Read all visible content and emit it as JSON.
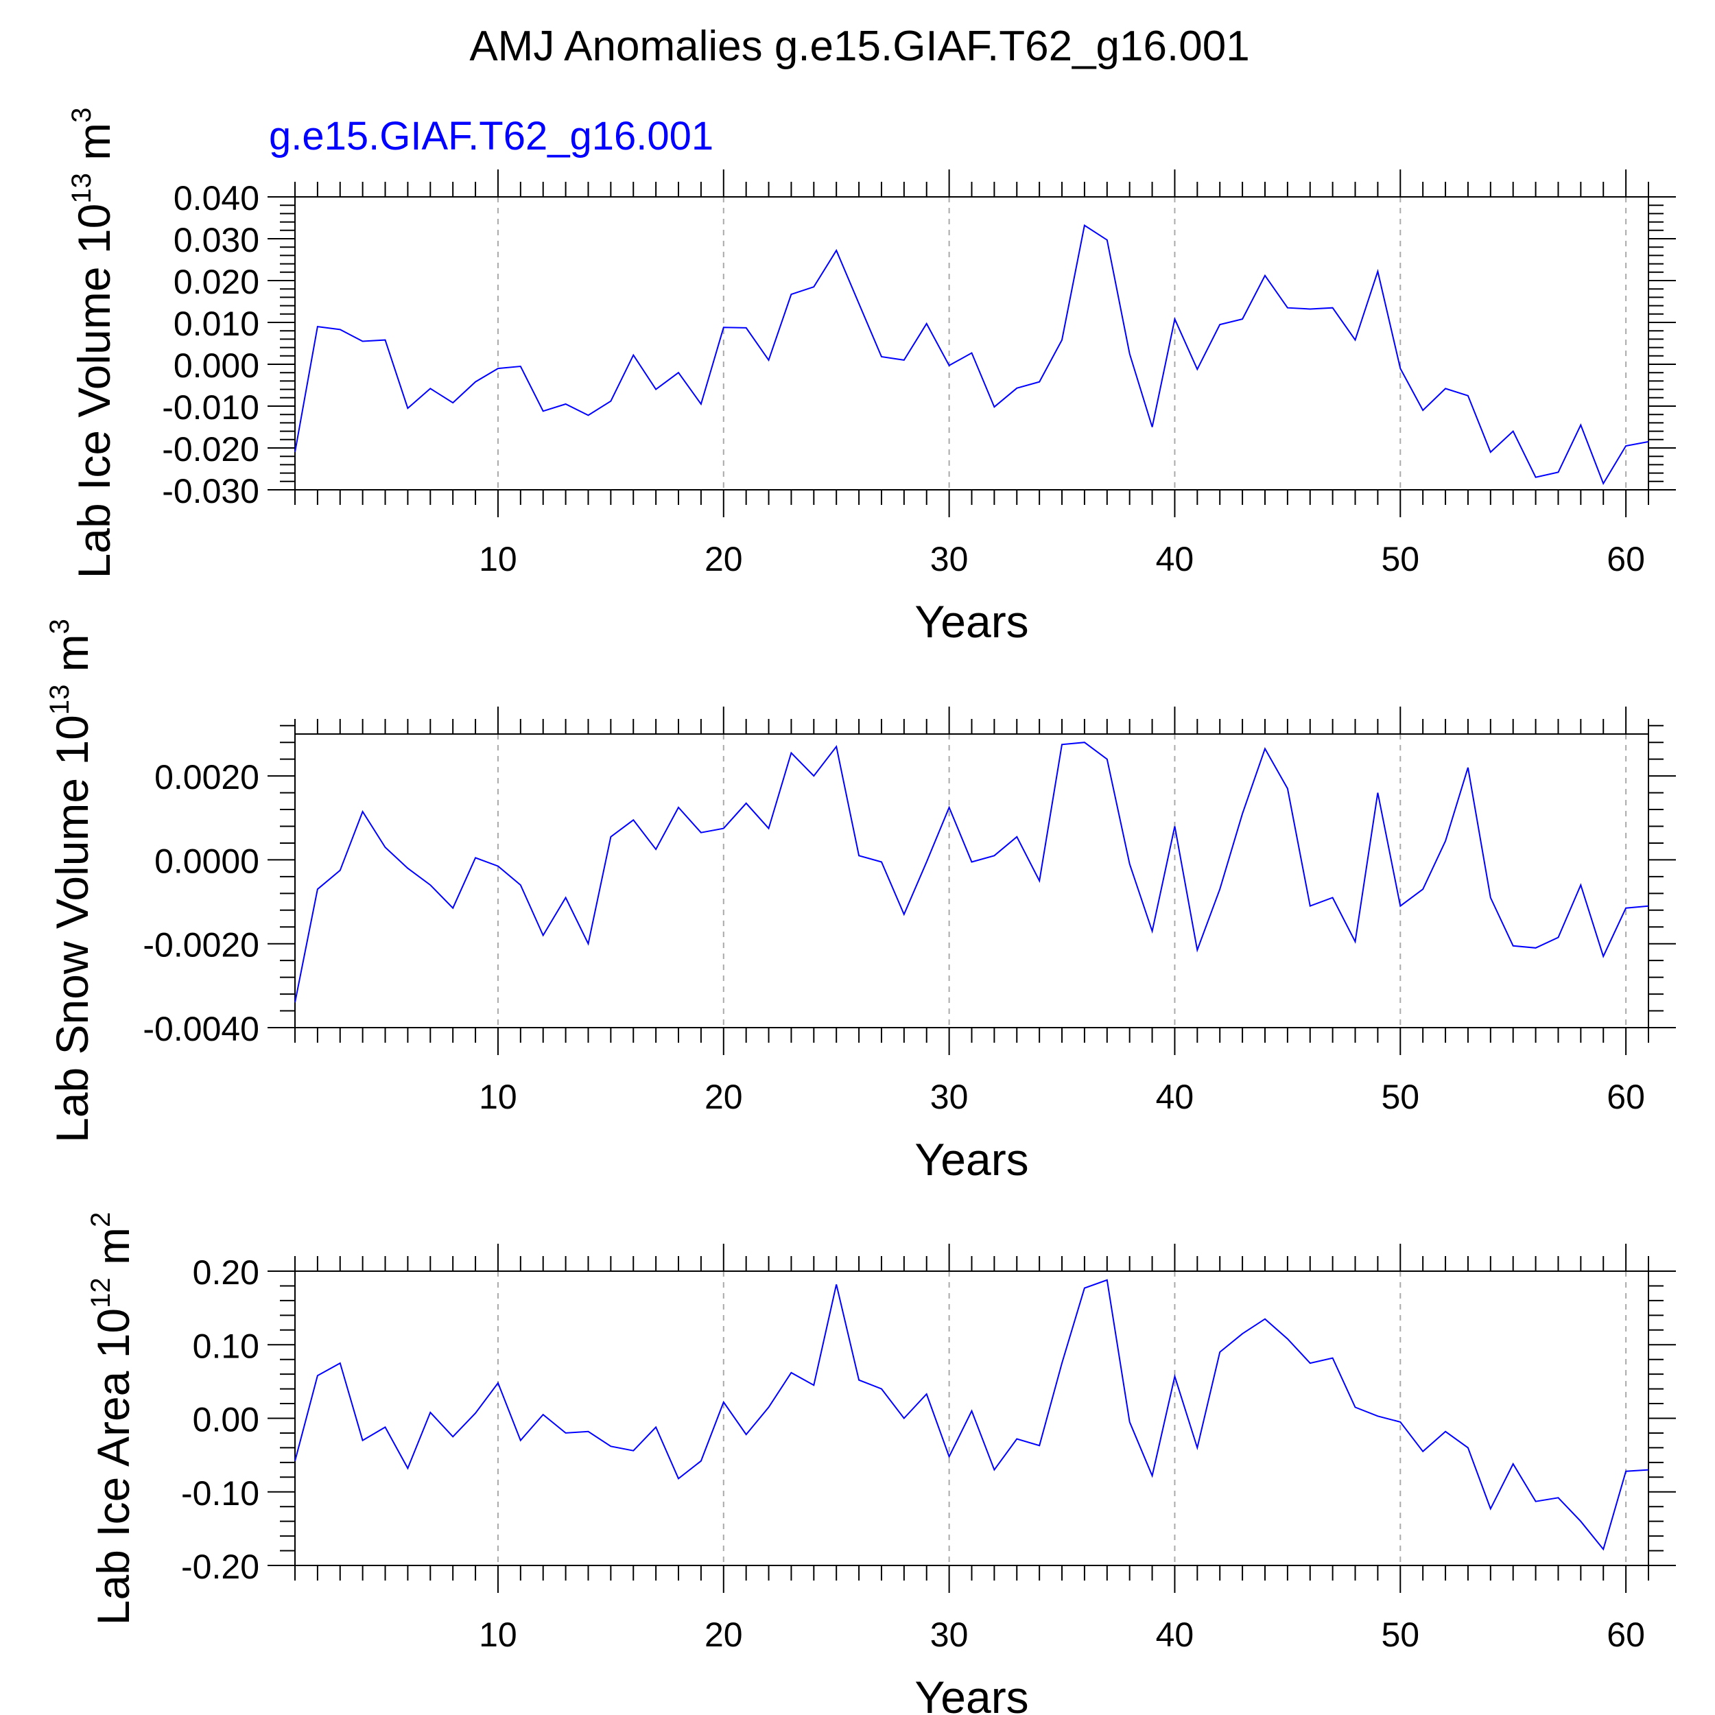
{
  "figure": {
    "title": "AMJ Anomalies g.e15.GIAF.T62_g16.001",
    "legend_label": "g.e15.GIAF.T62_g16.001",
    "legend_color": "#0000ff",
    "line_color": "#0000ff",
    "axis_color": "#000000",
    "grid_color": "#aaaaaa"
  },
  "chart_data": [
    {
      "type": "line",
      "ylabel": "Lab Ice Volume 10",
      "ylabel_exp": "13",
      "ylabel_unit": " m",
      "ylabel_unit_exp": "3",
      "xlabel": "Years",
      "xlim": [
        1,
        61
      ],
      "ylim": [
        -0.03,
        0.04
      ],
      "yticks": [
        -0.03,
        -0.02,
        -0.01,
        0.0,
        0.01,
        0.02,
        0.03,
        0.04
      ],
      "ytick_labels": [
        "-0.030",
        "-0.020",
        "-0.010",
        "0.000",
        "0.010",
        "0.020",
        "0.030",
        "0.040"
      ],
      "xticks": [
        10,
        20,
        30,
        40,
        50,
        60
      ],
      "xtick_labels": [
        "10",
        "20",
        "30",
        "40",
        "50",
        "60"
      ],
      "grid": "vertical dashed at major x ticks",
      "series": [
        {
          "x": [
            1,
            2,
            3,
            4,
            5,
            6,
            7,
            8,
            9,
            10,
            11,
            12,
            13,
            14,
            15,
            16,
            17,
            18,
            19,
            20,
            21,
            22,
            23,
            24,
            25,
            26,
            27,
            28,
            29,
            30,
            31,
            32,
            33,
            34,
            35,
            36,
            37,
            38,
            39,
            40,
            41,
            42,
            43,
            44,
            45,
            46,
            47,
            48,
            49,
            50,
            51,
            52,
            53,
            54,
            55,
            56,
            57,
            58,
            59,
            60,
            61
          ],
          "values": [
            -0.021,
            0.009,
            0.0083,
            0.0055,
            0.0058,
            -0.0105,
            -0.0058,
            -0.0092,
            -0.0042,
            -0.001,
            -0.0005,
            -0.0112,
            -0.0095,
            -0.0122,
            -0.0088,
            0.0022,
            -0.006,
            -0.002,
            -0.0095,
            0.0088,
            0.0087,
            0.001,
            0.0167,
            0.0185,
            0.0272,
            0.0145,
            0.0018,
            0.001,
            0.0097,
            -0.0003,
            0.0027,
            -0.0102,
            -0.0057,
            -0.0042,
            0.0058,
            0.0332,
            0.0297,
            0.0025,
            -0.015,
            0.0108,
            -0.0012,
            0.0095,
            0.0108,
            0.0212,
            0.0135,
            0.0132,
            0.0135,
            0.0058,
            0.0222,
            -0.001,
            -0.011,
            -0.0058,
            -0.0075,
            -0.021,
            -0.016,
            -0.027,
            -0.0258,
            -0.0145,
            -0.0285,
            -0.0195,
            -0.0185
          ]
        }
      ]
    },
    {
      "type": "line",
      "ylabel": "Lab Snow Volume 10",
      "ylabel_exp": "13",
      "ylabel_unit": " m",
      "ylabel_unit_exp": "3",
      "xlabel": "Years",
      "xlim": [
        1,
        61
      ],
      "ylim": [
        -0.004,
        0.003
      ],
      "yticks": [
        -0.004,
        -0.002,
        0.0,
        0.002
      ],
      "ytick_labels": [
        "-0.0040",
        "-0.0020",
        "0.0000",
        "0.0020"
      ],
      "xticks": [
        10,
        20,
        30,
        40,
        50,
        60
      ],
      "xtick_labels": [
        "10",
        "20",
        "30",
        "40",
        "50",
        "60"
      ],
      "grid": "vertical dashed at major x ticks",
      "series": [
        {
          "x": [
            1,
            2,
            3,
            4,
            5,
            6,
            7,
            8,
            9,
            10,
            11,
            12,
            13,
            14,
            15,
            16,
            17,
            18,
            19,
            20,
            21,
            22,
            23,
            24,
            25,
            26,
            27,
            28,
            29,
            30,
            31,
            32,
            33,
            34,
            35,
            36,
            37,
            38,
            39,
            40,
            41,
            42,
            43,
            44,
            45,
            46,
            47,
            48,
            49,
            50,
            51,
            52,
            53,
            54,
            55,
            56,
            57,
            58,
            59,
            60,
            61
          ],
          "values": [
            -0.0034,
            -0.0007,
            -0.00025,
            0.00115,
            0.0003,
            -0.0002,
            -0.0006,
            -0.00115,
            5e-05,
            -0.00015,
            -0.0006,
            -0.0018,
            -0.0009,
            -0.002,
            0.00055,
            0.00095,
            0.00025,
            0.00125,
            0.00065,
            0.00075,
            0.00135,
            0.00075,
            0.00255,
            0.002,
            0.0027,
            0.0001,
            -5e-05,
            -0.0013,
            -5e-05,
            0.00125,
            -5e-05,
            0.0001,
            0.00055,
            -0.0005,
            0.00275,
            0.0028,
            0.0024,
            -0.0001,
            -0.0017,
            0.0008,
            -0.00215,
            -0.0007,
            0.0011,
            0.00265,
            0.0017,
            -0.0011,
            -0.0009,
            -0.00195,
            0.0016,
            -0.0011,
            -0.0007,
            0.00045,
            0.0022,
            -0.0009,
            -0.00205,
            -0.0021,
            -0.00185,
            -0.0006,
            -0.0023,
            -0.00115,
            -0.0011
          ]
        }
      ]
    },
    {
      "type": "line",
      "ylabel": "Lab Ice Area 10",
      "ylabel_exp": "12",
      "ylabel_unit": " m",
      "ylabel_unit_exp": "2",
      "xlabel": "Years",
      "xlim": [
        1,
        61
      ],
      "ylim": [
        -0.2,
        0.2
      ],
      "yticks": [
        -0.2,
        -0.1,
        0.0,
        0.1,
        0.2
      ],
      "ytick_labels": [
        "-0.20",
        "-0.10",
        "0.00",
        "0.10",
        "0.20"
      ],
      "xticks": [
        10,
        20,
        30,
        40,
        50,
        60
      ],
      "xtick_labels": [
        "10",
        "20",
        "30",
        "40",
        "50",
        "60"
      ],
      "grid": "vertical dashed at major x ticks",
      "series": [
        {
          "x": [
            1,
            2,
            3,
            4,
            5,
            6,
            7,
            8,
            9,
            10,
            11,
            12,
            13,
            14,
            15,
            16,
            17,
            18,
            19,
            20,
            21,
            22,
            23,
            24,
            25,
            26,
            27,
            28,
            29,
            30,
            31,
            32,
            33,
            34,
            35,
            36,
            37,
            38,
            39,
            40,
            41,
            42,
            43,
            44,
            45,
            46,
            47,
            48,
            49,
            50,
            51,
            52,
            53,
            54,
            55,
            56,
            57,
            58,
            59,
            60,
            61
          ],
          "values": [
            -0.058,
            0.058,
            0.075,
            -0.03,
            -0.012,
            -0.068,
            0.008,
            -0.025,
            0.007,
            0.048,
            -0.03,
            0.005,
            -0.02,
            -0.018,
            -0.038,
            -0.044,
            -0.012,
            -0.082,
            -0.058,
            0.022,
            -0.022,
            0.015,
            0.062,
            0.045,
            0.182,
            0.052,
            0.04,
            0.0,
            0.033,
            -0.052,
            0.01,
            -0.07,
            -0.028,
            -0.037,
            0.075,
            0.177,
            0.188,
            -0.005,
            -0.078,
            0.057,
            -0.04,
            0.09,
            0.115,
            0.135,
            0.108,
            0.075,
            0.082,
            0.015,
            0.003,
            -0.005,
            -0.045,
            -0.018,
            -0.04,
            -0.123,
            -0.062,
            -0.113,
            -0.108,
            -0.14,
            -0.178,
            -0.072,
            -0.07
          ]
        }
      ]
    }
  ]
}
